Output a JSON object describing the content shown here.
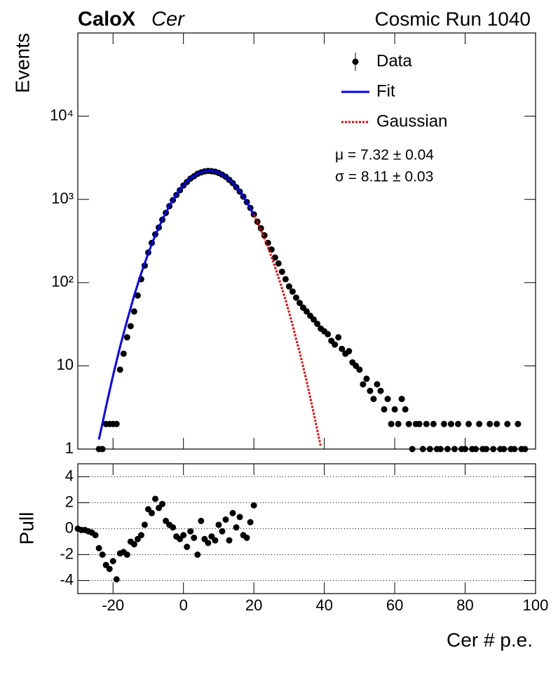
{
  "chart_data": [
    {
      "type": "scatter",
      "title": "CaloX",
      "title_suffix": "Cer",
      "run_label": "Cosmic Run 1040",
      "ylabel": "Events",
      "log_y": true,
      "legend": "upper right",
      "annotations": [
        "μ = 7.32 ± 0.04",
        "σ = 8.11 ± 0.03"
      ],
      "xlim": [
        -30,
        100
      ],
      "xticks": [
        -20,
        0,
        20,
        40,
        60,
        80,
        100
      ],
      "xtick_labels": false,
      "ylim": [
        1,
        100000
      ],
      "yticks": [
        1,
        10,
        {
          "value": 100,
          "label": "10²"
        },
        {
          "value": 1000,
          "label": "10³"
        },
        {
          "value": 10000,
          "label": "10⁴"
        }
      ],
      "series": [
        {
          "name": "Data",
          "type": "scatter",
          "color": "#000000",
          "x": [
            -24,
            -23,
            -22,
            -21,
            -20,
            -19,
            -18,
            -17,
            -16,
            -15,
            -14,
            -13,
            -12,
            -11,
            -10,
            -9,
            -8,
            -7,
            -6,
            -5,
            -4,
            -3,
            -2,
            -1,
            0,
            1,
            2,
            3,
            4,
            5,
            6,
            7,
            8,
            9,
            10,
            11,
            12,
            13,
            14,
            15,
            16,
            17,
            18,
            19,
            20,
            21,
            22,
            23,
            24,
            25,
            26,
            27,
            28,
            29,
            30,
            31,
            32,
            33,
            34,
            35,
            36,
            37,
            38,
            39,
            40,
            41,
            42,
            43,
            44,
            45,
            46,
            47,
            48,
            49,
            50,
            51,
            52,
            53,
            54,
            55,
            56,
            57,
            58,
            59,
            60,
            61,
            62,
            63,
            64,
            65,
            66,
            67,
            68,
            69,
            70,
            71,
            72,
            73,
            74,
            75,
            76,
            77,
            78,
            79,
            80,
            81,
            82,
            83,
            84,
            85,
            86,
            87,
            88,
            89,
            90,
            91,
            92,
            93,
            94,
            95,
            96,
            97
          ],
          "values": [
            1,
            1,
            2,
            2,
            2,
            2,
            9,
            14,
            22,
            30,
            45,
            70,
            110,
            160,
            230,
            300,
            380,
            460,
            570,
            690,
            830,
            980,
            1130,
            1290,
            1470,
            1620,
            1780,
            1900,
            2030,
            2110,
            2170,
            2200,
            2180,
            2150,
            2080,
            1980,
            1870,
            1720,
            1570,
            1400,
            1240,
            1080,
            930,
            790,
            660,
            540,
            450,
            370,
            300,
            250,
            200,
            170,
            135,
            110,
            90,
            78,
            66,
            57,
            50,
            45,
            40,
            36,
            32,
            28,
            26,
            24,
            20,
            18,
            22,
            16,
            14,
            15,
            11,
            10,
            9,
            6,
            7,
            5,
            4,
            6,
            5,
            3,
            4,
            2,
            3,
            2,
            4,
            3,
            2,
            1,
            2,
            2,
            1,
            2,
            1,
            2,
            1,
            1,
            2,
            1,
            2,
            1,
            2,
            1,
            1,
            2,
            1,
            1,
            2,
            1,
            1,
            2,
            1,
            2,
            1,
            1,
            2,
            1,
            1,
            2,
            1,
            1
          ]
        },
        {
          "name": "Fit",
          "type": "line",
          "color": "#0000ff",
          "line_style": "solid",
          "x": [
            -24,
            -22,
            -20,
            -18,
            -16,
            -14,
            -12,
            -10,
            -8,
            -6,
            -4,
            -2,
            0,
            2,
            4,
            6,
            8,
            10,
            12,
            14,
            16,
            18,
            20
          ],
          "values": [
            1.3,
            3.2,
            7.6,
            17,
            35,
            70,
            129,
            225,
            370,
            571,
            831,
            1137,
            1464,
            1774,
            2024,
            2171,
            2192,
            2083,
            1863,
            1568,
            1241,
            925,
            648
          ]
        },
        {
          "name": "Gaussian",
          "type": "line",
          "color": "#ee0000",
          "line_style": "dotted",
          "x": [
            20,
            21,
            22,
            23,
            24,
            25,
            26,
            27,
            28,
            29,
            30,
            31,
            32,
            33,
            34,
            35,
            36,
            37,
            38,
            39
          ],
          "values": [
            648,
            530,
            427,
            339,
            265,
            204,
            155,
            116,
            85,
            62,
            44,
            31,
            21,
            14.6,
            9.8,
            6.5,
            4.2,
            2.7,
            1.7,
            1.07
          ]
        }
      ]
    },
    {
      "type": "scatter",
      "ylabel": "Pull",
      "xlabel": "Cer # p.e.",
      "color": "#000000",
      "grid": true,
      "xlim": [
        -30,
        100
      ],
      "xticks": [
        -20,
        0,
        20,
        40,
        60,
        80,
        100
      ],
      "xtick_labels": true,
      "ylim": [
        -5,
        5
      ],
      "yticks": [
        -4,
        -2,
        0,
        2,
        4
      ],
      "x": [
        -30,
        -29,
        -28,
        -27,
        -26,
        -25,
        -24,
        -23,
        -22,
        -21,
        -20,
        -19,
        -18,
        -17,
        -16,
        -15,
        -14,
        -13,
        -12,
        -11,
        -10,
        -9,
        -8,
        -7,
        -6,
        -5,
        -4,
        -3,
        -2,
        -1,
        0,
        1,
        2,
        3,
        4,
        5,
        6,
        7,
        8,
        9,
        10,
        11,
        12,
        13,
        14,
        15,
        16,
        17,
        18,
        19,
        20
      ],
      "values": [
        0,
        -0.1,
        -0.1,
        -0.2,
        -0.3,
        -0.5,
        -1.5,
        -2,
        -2.8,
        -3.1,
        -2.5,
        -3.9,
        -1.9,
        -1.8,
        -2,
        -1,
        -1.2,
        -0.8,
        -0.5,
        0.3,
        1.5,
        1.2,
        2.3,
        1.6,
        1.9,
        0.6,
        0.3,
        0.1,
        -0.6,
        -0.8,
        -0.5,
        -1.4,
        -0.2,
        -0.7,
        -2,
        0.6,
        -0.8,
        -1.1,
        -0.6,
        -0.9,
        0.3,
        -0.2,
        0.7,
        -0.9,
        1.2,
        0.1,
        0.9,
        -0.5,
        -0.7,
        0.5,
        1.8
      ]
    }
  ]
}
